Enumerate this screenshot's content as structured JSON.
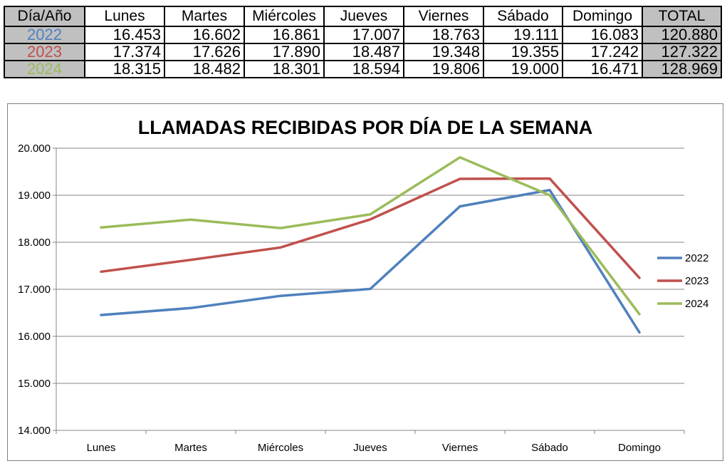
{
  "table": {
    "header": [
      "Día/Año",
      "Lunes",
      "Martes",
      "Miércoles",
      "Jueves",
      "Viernes",
      "Sábado",
      "Domingo",
      "TOTAL"
    ],
    "rows": [
      {
        "year": "2022",
        "color": "#4f81bd",
        "cells": [
          "16.453",
          "16.602",
          "16.861",
          "17.007",
          "18.763",
          "19.111",
          "16.083"
        ],
        "total": "120.880"
      },
      {
        "year": "2023",
        "color": "#c0504d",
        "cells": [
          "17.374",
          "17.626",
          "17.890",
          "18.487",
          "19.348",
          "19.355",
          "17.242"
        ],
        "total": "127.322"
      },
      {
        "year": "2024",
        "color": "#9bbb59",
        "cells": [
          "18.315",
          "18.482",
          "18.301",
          "18.594",
          "19.806",
          "19.000",
          "16.471"
        ],
        "total": "128.969"
      }
    ]
  },
  "chart_data": {
    "type": "line",
    "title": "LLAMADAS RECIBIDAS POR DÍA DE LA SEMANA",
    "categories": [
      "Lunes",
      "Martes",
      "Miércoles",
      "Jueves",
      "Viernes",
      "Sábado",
      "Domingo"
    ],
    "series": [
      {
        "name": "2022",
        "color": "#4f81bd",
        "values": [
          16453,
          16602,
          16861,
          17007,
          18763,
          19111,
          16083
        ]
      },
      {
        "name": "2023",
        "color": "#c0504d",
        "values": [
          17374,
          17626,
          17890,
          18487,
          19348,
          19355,
          17242
        ]
      },
      {
        "name": "2024",
        "color": "#9bbb59",
        "values": [
          18315,
          18482,
          18301,
          18594,
          19806,
          19000,
          16471
        ]
      }
    ],
    "ylim": [
      14000,
      20000
    ],
    "yticks": [
      "14.000",
      "15.000",
      "16.000",
      "17.000",
      "18.000",
      "19.000",
      "20.000"
    ],
    "ytick_values": [
      14000,
      15000,
      16000,
      17000,
      18000,
      19000,
      20000
    ],
    "grid": true,
    "legend": "right"
  }
}
